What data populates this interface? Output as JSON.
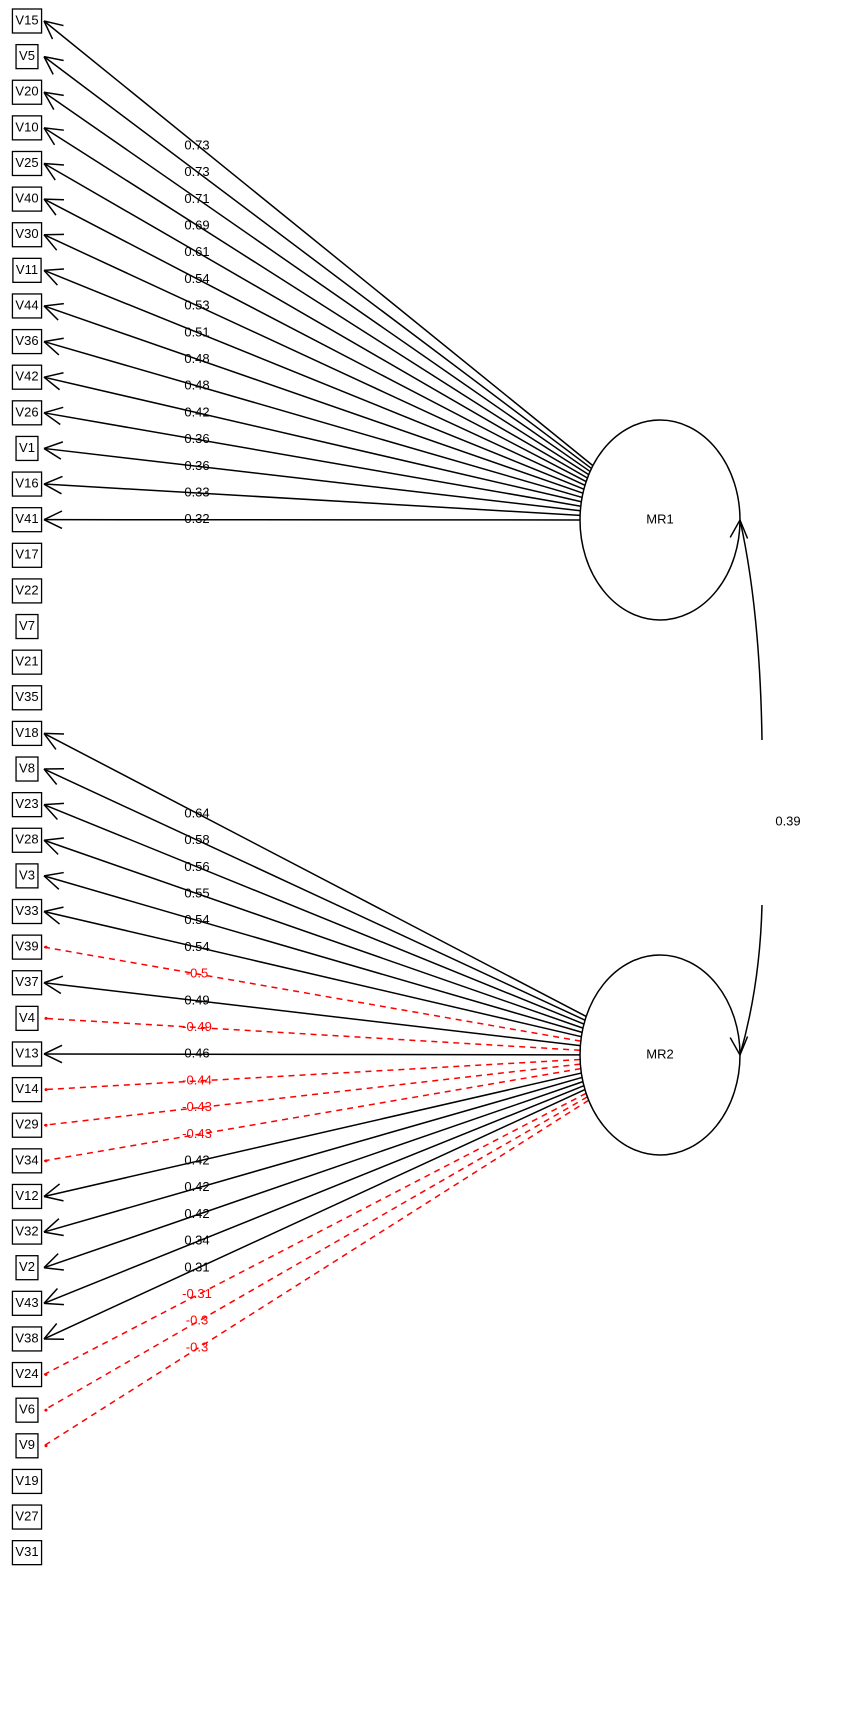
{
  "variables": [
    "V15",
    "V5",
    "V20",
    "V10",
    "V25",
    "V40",
    "V30",
    "V11",
    "V44",
    "V36",
    "V42",
    "V26",
    "V1",
    "V16",
    "V41",
    "V17",
    "V22",
    "V7",
    "V21",
    "V35",
    "V18",
    "V8",
    "V23",
    "V28",
    "V3",
    "V33",
    "V39",
    "V37",
    "V4",
    "V13",
    "V14",
    "V29",
    "V34",
    "V12",
    "V32",
    "V2",
    "V43",
    "V38",
    "V24",
    "V6",
    "V9",
    "V19",
    "V27",
    "V31"
  ],
  "factors": [
    {
      "label": "MR1",
      "loadings": [
        {
          "variable": "V15",
          "value": 0.73
        },
        {
          "variable": "V5",
          "value": 0.73
        },
        {
          "variable": "V20",
          "value": 0.71
        },
        {
          "variable": "V10",
          "value": 0.69
        },
        {
          "variable": "V25",
          "value": 0.61
        },
        {
          "variable": "V40",
          "value": 0.54
        },
        {
          "variable": "V30",
          "value": 0.53
        },
        {
          "variable": "V11",
          "value": 0.51
        },
        {
          "variable": "V44",
          "value": 0.48
        },
        {
          "variable": "V36",
          "value": 0.48
        },
        {
          "variable": "V42",
          "value": 0.42
        },
        {
          "variable": "V26",
          "value": 0.36
        },
        {
          "variable": "V1",
          "value": 0.36
        },
        {
          "variable": "V16",
          "value": 0.33
        },
        {
          "variable": "V41",
          "value": 0.32
        }
      ]
    },
    {
      "label": "MR2",
      "loadings": [
        {
          "variable": "V18",
          "value": 0.64
        },
        {
          "variable": "V8",
          "value": 0.58
        },
        {
          "variable": "V23",
          "value": 0.56
        },
        {
          "variable": "V28",
          "value": 0.55
        },
        {
          "variable": "V3",
          "value": 0.54
        },
        {
          "variable": "V33",
          "value": 0.54
        },
        {
          "variable": "V39",
          "value": -0.5
        },
        {
          "variable": "V37",
          "value": 0.49
        },
        {
          "variable": "V4",
          "value": -0.49
        },
        {
          "variable": "V13",
          "value": 0.46
        },
        {
          "variable": "V14",
          "value": -0.44
        },
        {
          "variable": "V29",
          "value": -0.43
        },
        {
          "variable": "V34",
          "value": -0.43
        },
        {
          "variable": "V12",
          "value": 0.42
        },
        {
          "variable": "V32",
          "value": 0.42
        },
        {
          "variable": "V2",
          "value": 0.42
        },
        {
          "variable": "V43",
          "value": 0.34
        },
        {
          "variable": "V38",
          "value": 0.31
        },
        {
          "variable": "V24",
          "value": -0.31
        },
        {
          "variable": "V6",
          "value": -0.3
        },
        {
          "variable": "V9",
          "value": -0.3
        }
      ]
    }
  ],
  "correlation": {
    "value": 0.39
  }
}
